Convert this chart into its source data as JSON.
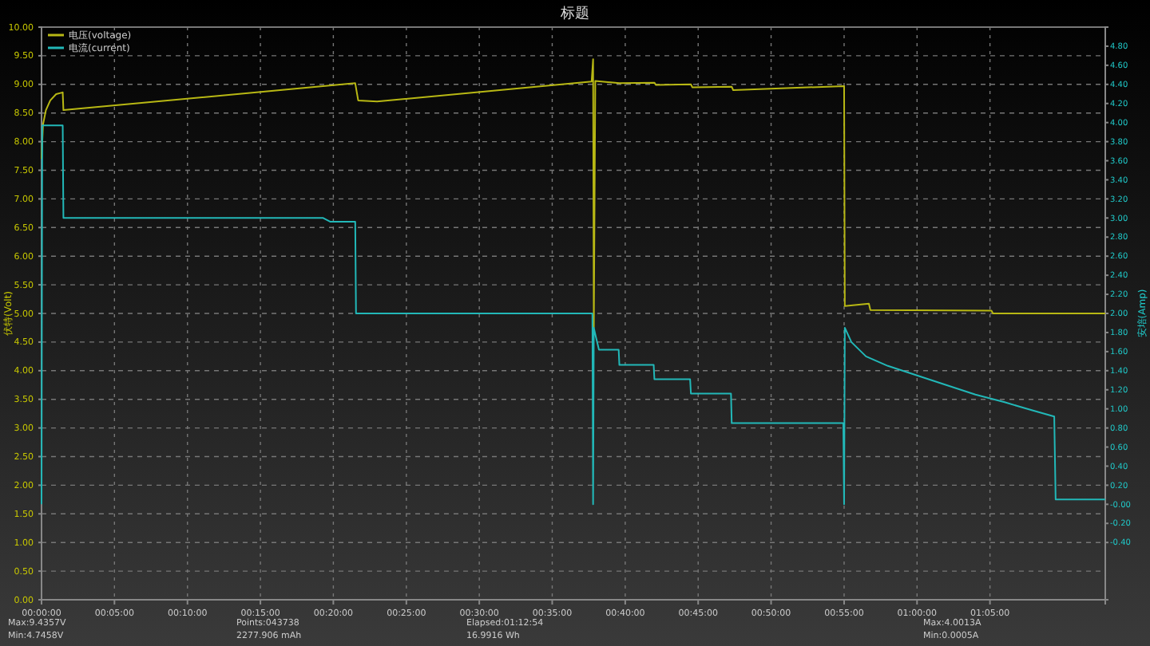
{
  "chart_data": {
    "type": "line",
    "title": "标题",
    "ylabel": "伏特(Volt)",
    "y2label": "安培(Amp)",
    "xlim": [
      0,
      1.215
    ],
    "xticks": [
      {
        "value": 0,
        "label": "00:00:00"
      },
      {
        "value": 0.0833,
        "label": "00:05:00"
      },
      {
        "value": 0.1667,
        "label": "00:10:00"
      },
      {
        "value": 0.25,
        "label": "00:15:00"
      },
      {
        "value": 0.3333,
        "label": "00:20:00"
      },
      {
        "value": 0.4167,
        "label": "00:25:00"
      },
      {
        "value": 0.5,
        "label": "00:30:00"
      },
      {
        "value": 0.5833,
        "label": "00:35:00"
      },
      {
        "value": 0.6667,
        "label": "00:40:00"
      },
      {
        "value": 0.75,
        "label": "00:45:00"
      },
      {
        "value": 0.8333,
        "label": "00:50:00"
      },
      {
        "value": 0.9167,
        "label": "00:55:00"
      },
      {
        "value": 1,
        "label": "01:00:00"
      },
      {
        "value": 1.0833,
        "label": "01:05:00"
      }
    ],
    "ylim": [
      0,
      10
    ],
    "yticks": [
      {
        "value": 0,
        "label": "0.00"
      },
      {
        "value": 0.5,
        "label": "0.50"
      },
      {
        "value": 1,
        "label": "1.00"
      },
      {
        "value": 1.5,
        "label": "1.50"
      },
      {
        "value": 2,
        "label": "2.00"
      },
      {
        "value": 2.5,
        "label": "2.50"
      },
      {
        "value": 3,
        "label": "3.00"
      },
      {
        "value": 3.5,
        "label": "3.50"
      },
      {
        "value": 4,
        "label": "4.00"
      },
      {
        "value": 4.5,
        "label": "4.50"
      },
      {
        "value": 5,
        "label": "5.00"
      },
      {
        "value": 5.5,
        "label": "5.50"
      },
      {
        "value": 6,
        "label": "6.00"
      },
      {
        "value": 6.5,
        "label": "6.50"
      },
      {
        "value": 7,
        "label": "7.00"
      },
      {
        "value": 7.5,
        "label": "7.50"
      },
      {
        "value": 8,
        "label": "8.00"
      },
      {
        "value": 8.5,
        "label": "8.50"
      },
      {
        "value": 9,
        "label": "9.00"
      },
      {
        "value": 9.5,
        "label": "9.50"
      },
      {
        "value": 10,
        "label": "10.00"
      }
    ],
    "y2lim": [
      -1,
      5
    ],
    "y2ticks": [
      {
        "value": -0.4,
        "label": "-0.40"
      },
      {
        "value": -0.2,
        "label": "-0.20"
      },
      {
        "value": 0,
        "label": "-0.00"
      },
      {
        "value": 0.2,
        "label": "0.20"
      },
      {
        "value": 0.4,
        "label": "0.40"
      },
      {
        "value": 0.6,
        "label": "0.60"
      },
      {
        "value": 0.8,
        "label": "0.80"
      },
      {
        "value": 1,
        "label": "1.00"
      },
      {
        "value": 1.2,
        "label": "1.20"
      },
      {
        "value": 1.4,
        "label": "1.40"
      },
      {
        "value": 1.6,
        "label": "1.60"
      },
      {
        "value": 1.8,
        "label": "1.80"
      },
      {
        "value": 2,
        "label": "2.00"
      },
      {
        "value": 2.2,
        "label": "2.20"
      },
      {
        "value": 2.4,
        "label": "2.40"
      },
      {
        "value": 2.6,
        "label": "2.60"
      },
      {
        "value": 2.8,
        "label": "2.80"
      },
      {
        "value": 3,
        "label": "3.00"
      },
      {
        "value": 3.2,
        "label": "3.20"
      },
      {
        "value": 3.4,
        "label": "3.40"
      },
      {
        "value": 3.6,
        "label": "3.60"
      },
      {
        "value": 3.8,
        "label": "3.80"
      },
      {
        "value": 4,
        "label": "4.00"
      },
      {
        "value": 4.2,
        "label": "4.20"
      },
      {
        "value": 4.4,
        "label": "4.40"
      },
      {
        "value": 4.6,
        "label": "4.60"
      },
      {
        "value": 4.8,
        "label": "4.80"
      }
    ],
    "grid": true,
    "legend": "top left",
    "line_style": "solid",
    "marker": "none",
    "series": [
      {
        "name": "电压(voltage)",
        "color": "#b8b814",
        "x": [
          0,
          0.0017,
          0.005,
          0.01,
          0.0167,
          0.0242,
          0.025,
          0.3583,
          0.3617,
          0.3833,
          0.6283,
          0.63,
          0.6308,
          0.6325,
          0.66,
          0.7,
          0.7017,
          0.7417,
          0.7433,
          0.7883,
          0.79,
          0.9167,
          0.9175,
          0.945,
          0.9467,
          1.085,
          1.0867,
          1.215
        ],
        "values": [
          7.7,
          8.3,
          8.55,
          8.72,
          8.83,
          8.86,
          8.55,
          9.02,
          8.72,
          8.7,
          9.05,
          9.44,
          4.75,
          9.06,
          9.02,
          9.03,
          8.99,
          9.0,
          8.95,
          8.96,
          8.9,
          8.97,
          5.13,
          5.17,
          5.06,
          5.05,
          5.0,
          5.0
        ]
      },
      {
        "name": "电流(current)",
        "color": "#22b8b8",
        "axis": "y2",
        "x": [
          0,
          0.0008,
          0.0242,
          0.025,
          0.3217,
          0.33,
          0.3583,
          0.3592,
          0.6292,
          0.63,
          0.6308,
          0.6333,
          0.6367,
          0.6592,
          0.66,
          0.6992,
          0.7,
          0.7408,
          0.7417,
          0.7875,
          0.7883,
          0.9158,
          0.9167,
          0.9175,
          0.925,
          0.9417,
          0.9667,
          1.0,
          1.0333,
          1.0667,
          1.1,
          1.1333,
          1.1567,
          1.1583,
          1.215
        ],
        "values": [
          0,
          3.97,
          3.97,
          3.0,
          3.0,
          2.96,
          2.96,
          2.0,
          2.0,
          0.0,
          1.85,
          1.75,
          1.62,
          1.62,
          1.46,
          1.46,
          1.31,
          1.31,
          1.16,
          1.16,
          0.85,
          0.85,
          0.0,
          1.85,
          1.7,
          1.55,
          1.45,
          1.35,
          1.25,
          1.15,
          1.07,
          0.98,
          0.92,
          0.05,
          0.05
        ]
      }
    ],
    "annotations": [
      "Max:9.4357V",
      "Min:4.7458V",
      "Points:043738",
      "2277.906 mAh",
      "Elapsed:01:12:54",
      "16.9916 Wh",
      "Max:4.0013A",
      "Min:0.0005A"
    ]
  }
}
